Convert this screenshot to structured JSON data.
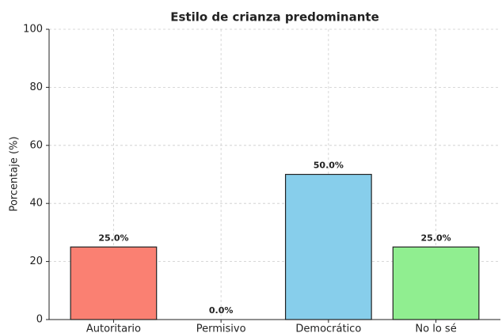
{
  "chart_data": {
    "type": "bar",
    "title": "Estilo de crianza predominante",
    "y_label": "Porcentaje (%)",
    "categories": [
      "Autoritario",
      "Permisivo",
      "Democrático",
      "No lo sé"
    ],
    "values": [
      25,
      0,
      50,
      25
    ],
    "value_labels": [
      "25.0%",
      "0.0%",
      "50.0%",
      "25.0%"
    ],
    "colors": [
      "#fa8072",
      "#ffd700",
      "#87ceeb",
      "#90ee90"
    ],
    "ylim": [
      0,
      100
    ],
    "yticks": [
      0,
      20,
      40,
      60,
      80,
      100
    ],
    "grid": true
  }
}
